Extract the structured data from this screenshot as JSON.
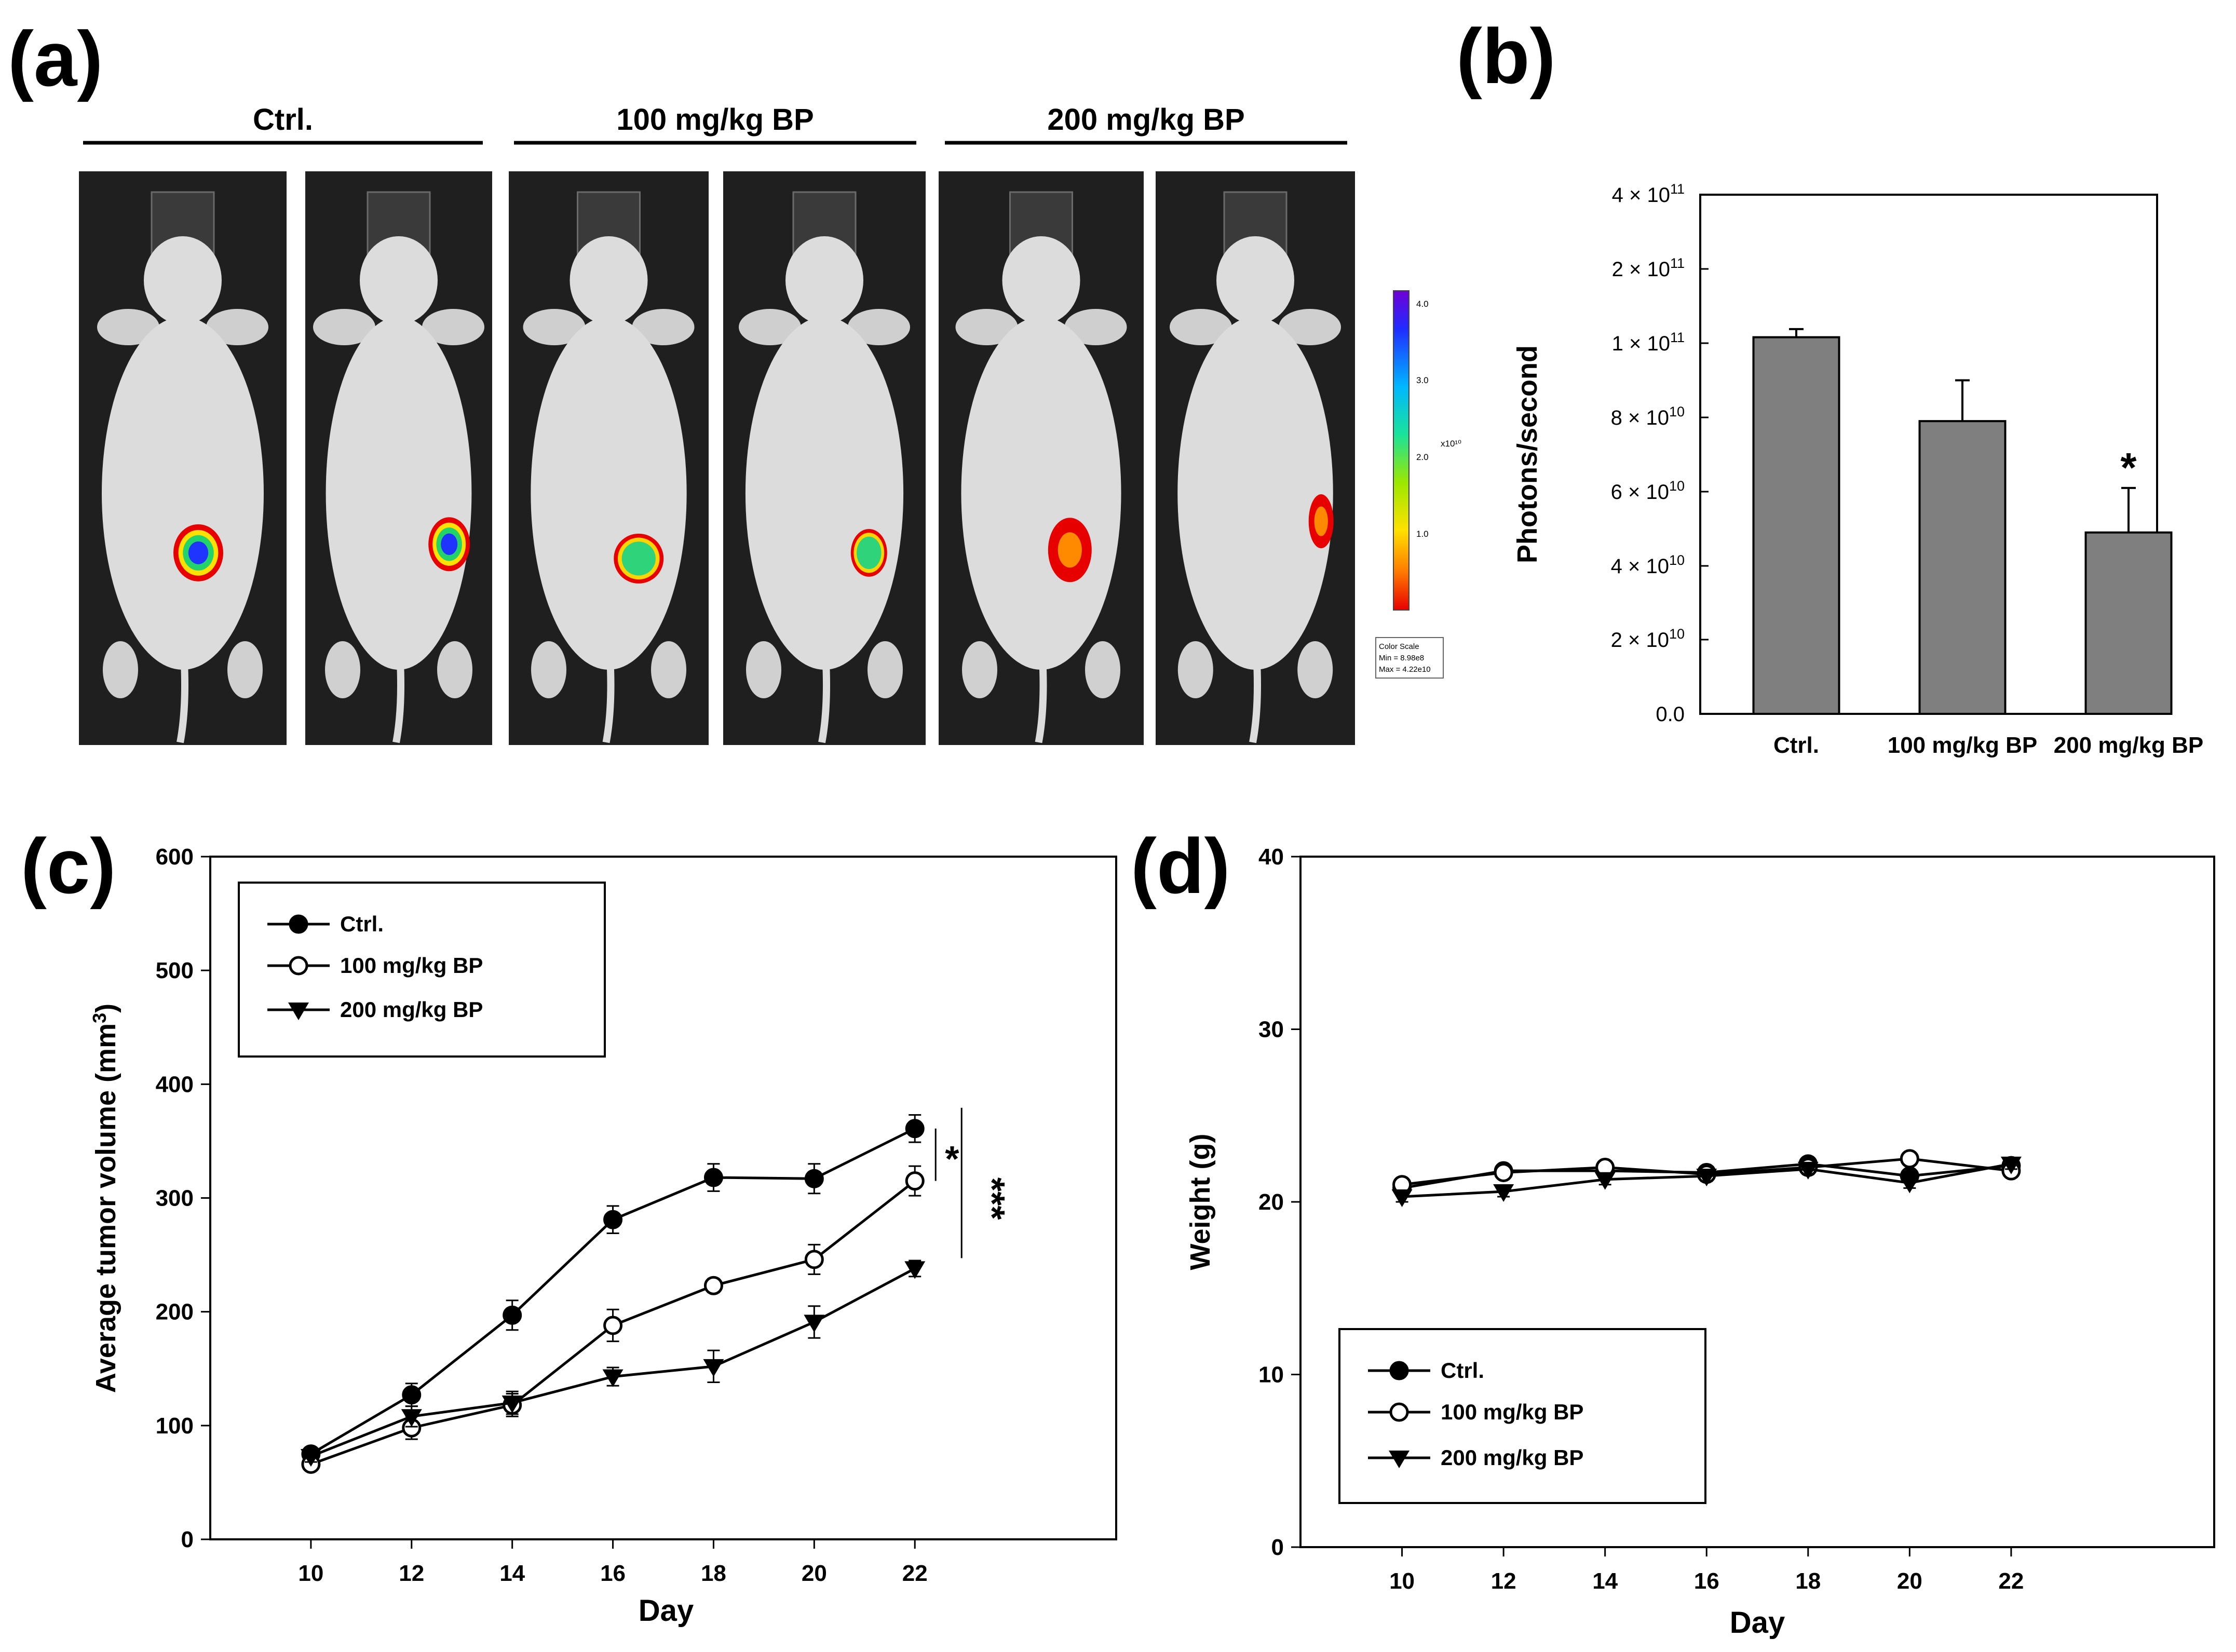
{
  "panel_a": {
    "label": "(a)",
    "groups": [
      "Ctrl.",
      "100 mg/kg BP",
      "200 mg/kg BP"
    ],
    "colorbar": {
      "ticks": [
        "4.0",
        "3.0",
        "2.0",
        "1.0"
      ],
      "unit": "x10¹⁰",
      "box_lines": [
        "Color Scale",
        "Min = 8.98e8",
        "Max = 4.22e10"
      ]
    },
    "mice": [
      {
        "group": "Ctrl.",
        "signal": "high"
      },
      {
        "group": "Ctrl.",
        "signal": "high"
      },
      {
        "group": "100 mg/kg BP",
        "signal": "medium"
      },
      {
        "group": "100 mg/kg BP",
        "signal": "medium"
      },
      {
        "group": "200 mg/kg BP",
        "signal": "low"
      },
      {
        "group": "200 mg/kg BP",
        "signal": "low"
      }
    ],
    "colors": {
      "background": "#1f1f1f",
      "mouse": "#dcdcdc"
    }
  },
  "chart_data": [
    {
      "panel": "(b)",
      "type": "bar",
      "categories": [
        "Ctrl.",
        "100 mg/kg BP",
        "200 mg/kg BP"
      ],
      "values": [
        108000000000,
        79000000000,
        49000000000
      ],
      "errors": [
        11000000000,
        11000000000,
        12000000000
      ],
      "ylabel": "Photons/second",
      "yticks": [
        0,
        20000000000,
        40000000000,
        60000000000,
        80000000000,
        100000000000,
        200000000000,
        400000000000
      ],
      "ytick_labels": [
        {
          "base": "0.0",
          "exp": ""
        },
        {
          "base": "2 × 10",
          "exp": "10"
        },
        {
          "base": "4 × 10",
          "exp": "10"
        },
        {
          "base": "6 × 10",
          "exp": "10"
        },
        {
          "base": "8 × 10",
          "exp": "10"
        },
        {
          "base": "1 × 10",
          "exp": "11"
        },
        {
          "base": "2 × 10",
          "exp": "11"
        },
        {
          "base": "4 × 10",
          "exp": "11"
        }
      ],
      "significance": [
        {
          "category": "200 mg/kg BP",
          "mark": "*"
        }
      ],
      "bar_color": "#7f7f7f"
    },
    {
      "panel": "(c)",
      "type": "line",
      "x": [
        10,
        12,
        14,
        16,
        18,
        20,
        22
      ],
      "xlabel": "Day",
      "ylabel": "Average tumor volume (mm",
      "ylabel_sup": "3",
      "ylabel_end": ")",
      "xlim": [
        8,
        26
      ],
      "ylim": [
        0,
        600
      ],
      "yticks": [
        0,
        100,
        200,
        300,
        400,
        500,
        600
      ],
      "series": [
        {
          "name": "Ctrl.",
          "marker": "filled-circle",
          "values": [
            75,
            127,
            197,
            281,
            318,
            317,
            361
          ],
          "errors": [
            6,
            10,
            13,
            12,
            12,
            13,
            12
          ]
        },
        {
          "name": "100 mg/kg BP",
          "marker": "open-circle",
          "values": [
            66,
            98,
            118,
            188,
            223,
            246,
            315
          ],
          "errors": [
            5,
            10,
            10,
            14,
            6,
            13,
            13
          ]
        },
        {
          "name": "200 mg/kg BP",
          "marker": "filled-triangle-down",
          "values": [
            73,
            108,
            120,
            143,
            152,
            191,
            238
          ],
          "errors": [
            5,
            9,
            10,
            8,
            14,
            14,
            7
          ]
        }
      ],
      "significance": [
        "*",
        "***"
      ],
      "legend": "top-left"
    },
    {
      "panel": "(d)",
      "type": "line",
      "x": [
        10,
        12,
        14,
        16,
        18,
        20,
        22
      ],
      "xlabel": "Day",
      "ylabel": "Weight (g)",
      "xlim": [
        8,
        26
      ],
      "ylim": [
        0,
        40
      ],
      "yticks": [
        0,
        10,
        20,
        30,
        40
      ],
      "series": [
        {
          "name": "Ctrl.",
          "marker": "filled-circle",
          "values": [
            20.8,
            21.8,
            21.8,
            21.7,
            22.2,
            21.5,
            22.1
          ],
          "errors": [
            0.2,
            0.2,
            0.2,
            0.2,
            0.2,
            0.2,
            0.2
          ]
        },
        {
          "name": "100 mg/kg BP",
          "marker": "open-circle",
          "values": [
            21.0,
            21.7,
            22.0,
            21.6,
            22.0,
            22.5,
            21.8
          ],
          "errors": [
            0.2,
            0.2,
            0.2,
            0.2,
            0.2,
            0.2,
            0.2
          ]
        },
        {
          "name": "200 mg/kg BP",
          "marker": "filled-triangle-down",
          "values": [
            20.3,
            20.6,
            21.3,
            21.5,
            21.9,
            21.1,
            22.2
          ],
          "errors": [
            0.3,
            0.3,
            0.3,
            0.3,
            0.3,
            0.3,
            0.3
          ]
        }
      ],
      "legend": "bottom-left"
    }
  ]
}
